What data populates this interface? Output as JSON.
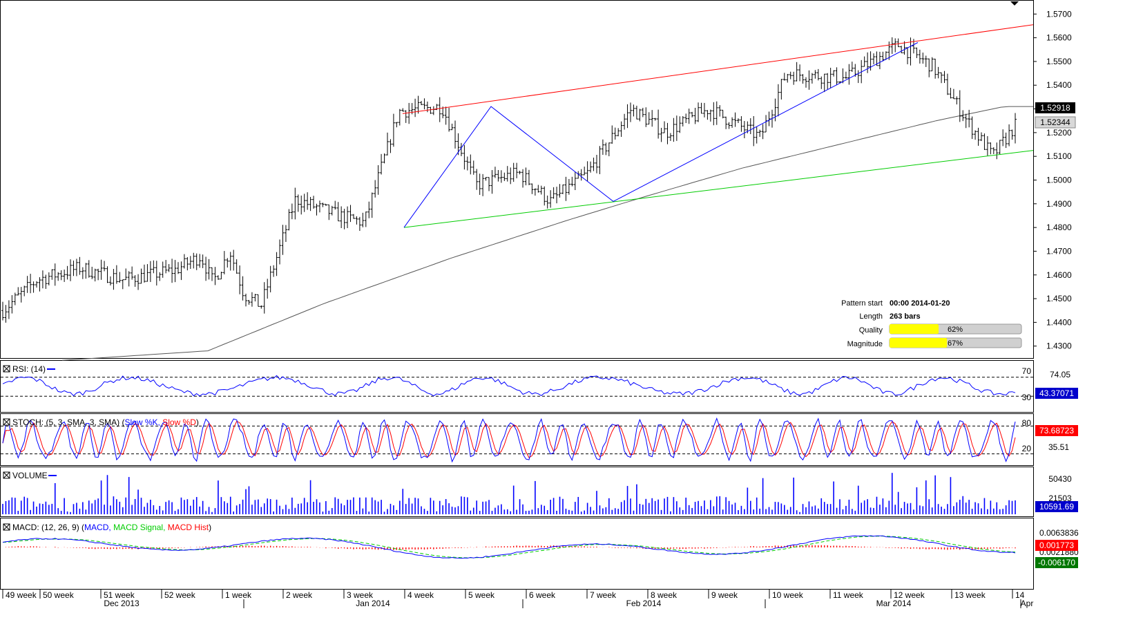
{
  "chart_data": {
    "type": "candlestick",
    "price_axis": {
      "ticks": [
        "1.5700",
        "1.5600",
        "1.5500",
        "1.5400",
        "1.5300",
        "1.5200",
        "1.5100",
        "1.5000",
        "1.4900",
        "1.4800",
        "1.4700",
        "1.4600",
        "1.4500",
        "1.4400",
        "1.4300"
      ],
      "ylim": [
        1.427,
        1.573
      ],
      "current_ma_label": "1.52918",
      "current_price_label": "1.52344"
    },
    "pattern_info": {
      "pattern_start_label": "Pattern start",
      "pattern_start_value": "00:00 2014-01-20",
      "length_label": "Length",
      "length_value": "263 bars",
      "quality_label": "Quality",
      "quality_value": "62%",
      "quality_fraction": 0.62,
      "magnitude_label": "Magnitude",
      "magnitude_value": "67%",
      "magnitude_fraction": 0.67
    },
    "x_axis": {
      "week_labels": [
        "49 week",
        "50 week",
        "51 week",
        "52 week",
        "1 week",
        "2 week",
        "3 week",
        "4 week",
        "5 week",
        "6 week",
        "7 week",
        "8 week",
        "9 week",
        "10 week",
        "11 week",
        "12 week",
        "13 week",
        "14"
      ],
      "month_labels": [
        "Dec 2013",
        "Jan 2014",
        "Feb 2014",
        "Mar 2014",
        "Apr"
      ]
    },
    "rsi": {
      "title": "RSI: (14)",
      "levels": [
        "70",
        "30"
      ],
      "value_label": "74.05",
      "current_label": "43.37071"
    },
    "stoch": {
      "title_prefix": "STOCH: (5, 3, SMA, 3, SMA)",
      "k_label": "Slow %K,",
      "d_label": "Slow %D",
      "levels": [
        "80",
        "20"
      ],
      "mid_label": "35.51",
      "current_label": "73.68723"
    },
    "volume": {
      "title": "VOLUME",
      "top_label": "50430",
      "mid_label": "21503",
      "current_label": "10591.69"
    },
    "macd": {
      "title_prefix": "MACD: (12, 26, 9)",
      "macd_label": "MACD,",
      "signal_label": "MACD Signal,",
      "hist_label": "MACD Hist",
      "top_label": "0.0063836",
      "hist_current_label": "0.001773",
      "hidden_label": "0.0021880",
      "macd_current_label": "-0.006170"
    }
  },
  "colors": {
    "candle": "#000000",
    "upper_line": "#ff0000",
    "lower_line": "#00cc00",
    "zigzag": "#0000ff",
    "ma": "#555555",
    "rsi": "#0000ff",
    "stoch_k": "#0000ff",
    "stoch_d": "#ff0000",
    "volume": "#0000ff",
    "macd": "#0000ff",
    "macd_signal": "#00cc00",
    "macd_hist": "#ff0000",
    "bar_fill": "#ffff00",
    "bar_track": "#d0d0d0",
    "ma_box": "#000000",
    "price_box": "#d8d8d8"
  }
}
